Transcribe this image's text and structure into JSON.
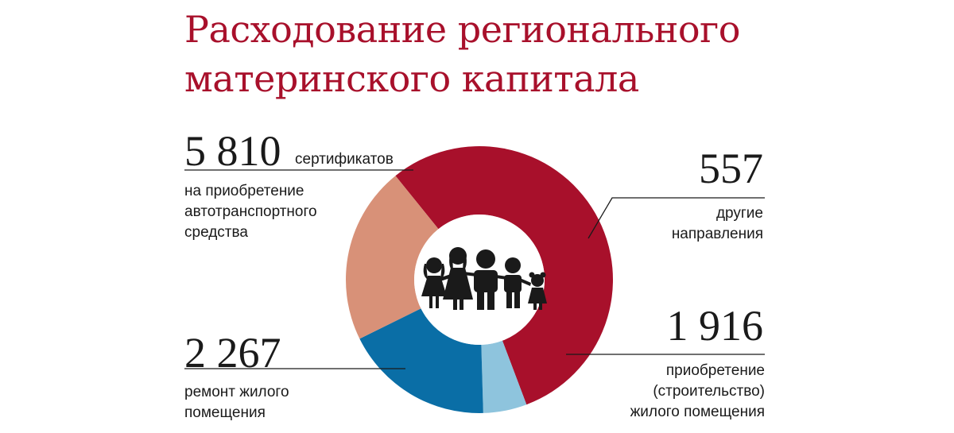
{
  "title": [
    "Расходование регионального",
    "материнского капитала"
  ],
  "colors": {
    "title": "#a8102b",
    "segments": [
      "#a8102b",
      "#8ec4dd",
      "#0a6ea6",
      "#d89178"
    ]
  },
  "center_icon": "family-icon",
  "chart_data": {
    "type": "pie",
    "subtype": "donut",
    "title": "Расходование регионального материнского капитала",
    "slices": [
      {
        "value": 5810,
        "value_label": "5 810",
        "unit": "сертификатов",
        "label": [
          "на приобретение",
          "автотранспортного",
          "средства"
        ]
      },
      {
        "value": 557,
        "value_label": "557",
        "label": [
          "другие",
          "направления"
        ]
      },
      {
        "value": 1916,
        "value_label": "1 916",
        "label": [
          "приобретение",
          "(строительство)",
          "жилого помещения"
        ]
      },
      {
        "value": 2267,
        "value_label": "2 267",
        "label": [
          "ремонт жилого",
          "помещения"
        ]
      }
    ]
  }
}
